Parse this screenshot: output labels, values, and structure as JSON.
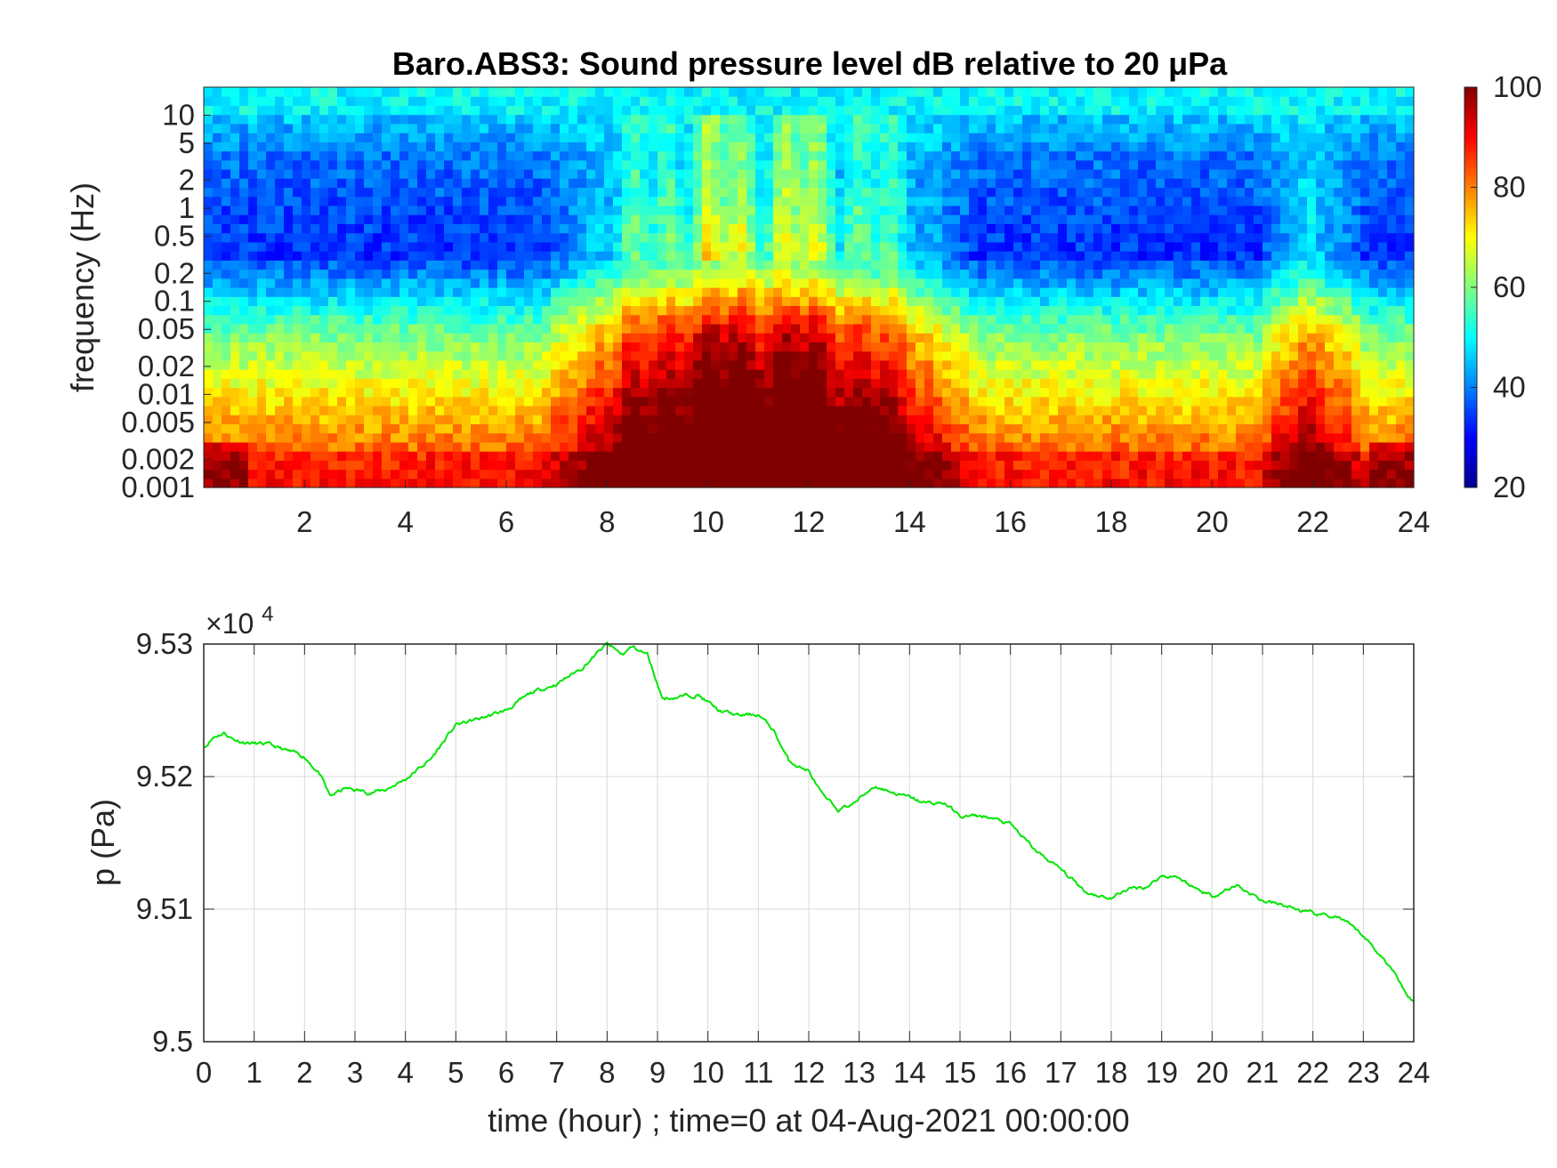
{
  "colors": {
    "pressure_line": "#00e600",
    "grid": "#d9d9d9",
    "axis": "#262626",
    "colormap": "jet"
  },
  "chart_data": [
    {
      "type": "heatmap",
      "title": "Baro.ABS3: Sound pressure level dB relative to 20 μPa",
      "xlabel": "",
      "ylabel": "frequency (Hz)",
      "x_ticks": [
        "2",
        "4",
        "6",
        "8",
        "10",
        "12",
        "14",
        "16",
        "18",
        "20",
        "22",
        "24"
      ],
      "y_ticks": [
        "10",
        "5",
        "2",
        "1",
        "0.5",
        "0.2",
        "0.1",
        "0.05",
        "0.02",
        "0.01",
        "0.005",
        "0.002",
        "0.001"
      ],
      "y_scale": "log",
      "xlim": [
        0,
        24
      ],
      "ylim": [
        0.001,
        20
      ],
      "colorbar": {
        "label": "",
        "ticks": [
          "100",
          "80",
          "60",
          "40",
          "20"
        ],
        "range": [
          20,
          100
        ]
      },
      "low_freq_level_db": 90,
      "high_freq_level_db": 50,
      "quiet_band_level_db": 33,
      "active_periods_hours": [
        [
          7,
          15
        ],
        [
          21,
          23
        ]
      ]
    },
    {
      "type": "line",
      "title": "",
      "xlabel": "time (hour) ; time=0 at 04-Aug-2021 00:00:00",
      "ylabel": "p (Pa)",
      "y_multiplier_label": "×10",
      "y_multiplier_exponent": "4",
      "x_ticks": [
        "0",
        "1",
        "2",
        "3",
        "4",
        "5",
        "6",
        "7",
        "8",
        "9",
        "10",
        "11",
        "12",
        "13",
        "14",
        "15",
        "16",
        "17",
        "18",
        "19",
        "20",
        "21",
        "22",
        "23",
        "24"
      ],
      "y_ticks": [
        "9.53",
        "9.52",
        "9.51",
        "9.5"
      ],
      "xlim": [
        0,
        24
      ],
      "ylim": [
        95000,
        95300
      ],
      "grid": true,
      "series": [
        {
          "x": [
            0,
            0.2,
            0.4,
            0.6,
            0.8,
            1,
            1.3,
            1.6,
            2,
            2.3,
            2.5,
            2.8,
            3,
            3.3,
            3.6,
            4,
            4.5,
            5,
            5.5,
            6,
            6.5,
            7,
            7.5,
            8,
            8.3,
            8.5,
            8.8,
            9.1,
            9.4,
            9.8,
            10.2,
            10.6,
            11,
            11.3,
            11.6,
            12,
            12.3,
            12.6,
            12.9,
            13.3,
            13.6,
            14,
            14.3,
            14.7,
            15,
            15.5,
            16,
            16.5,
            17,
            17.5,
            18,
            18.3,
            18.7,
            19,
            19.3,
            19.6,
            20,
            20.5,
            21,
            21.5,
            22,
            22.5,
            23,
            23.5,
            24
          ],
          "y": [
            95222,
            95230,
            95233,
            95228,
            95226,
            95225,
            95224,
            95220,
            95215,
            95202,
            95185,
            95191,
            95190,
            95188,
            95190,
            95198,
            95213,
            95239,
            95244,
            95250,
            95263,
            95270,
            95282,
            95300,
            95292,
            95298,
            95292,
            95259,
            95260,
            95262,
            95250,
            95246,
            95247,
            95235,
            95212,
            95204,
            95184,
            95175,
            95180,
            95193,
            95189,
            95184,
            95180,
            95180,
            95170,
            95170,
            95164,
            95144,
            95130,
            95113,
            95108,
            95115,
            95117,
            95125,
            95125,
            95117,
            95110,
            95118,
            95106,
            95102,
            95096,
            95094,
            95080,
            95058,
            95030
          ]
        }
      ]
    }
  ]
}
